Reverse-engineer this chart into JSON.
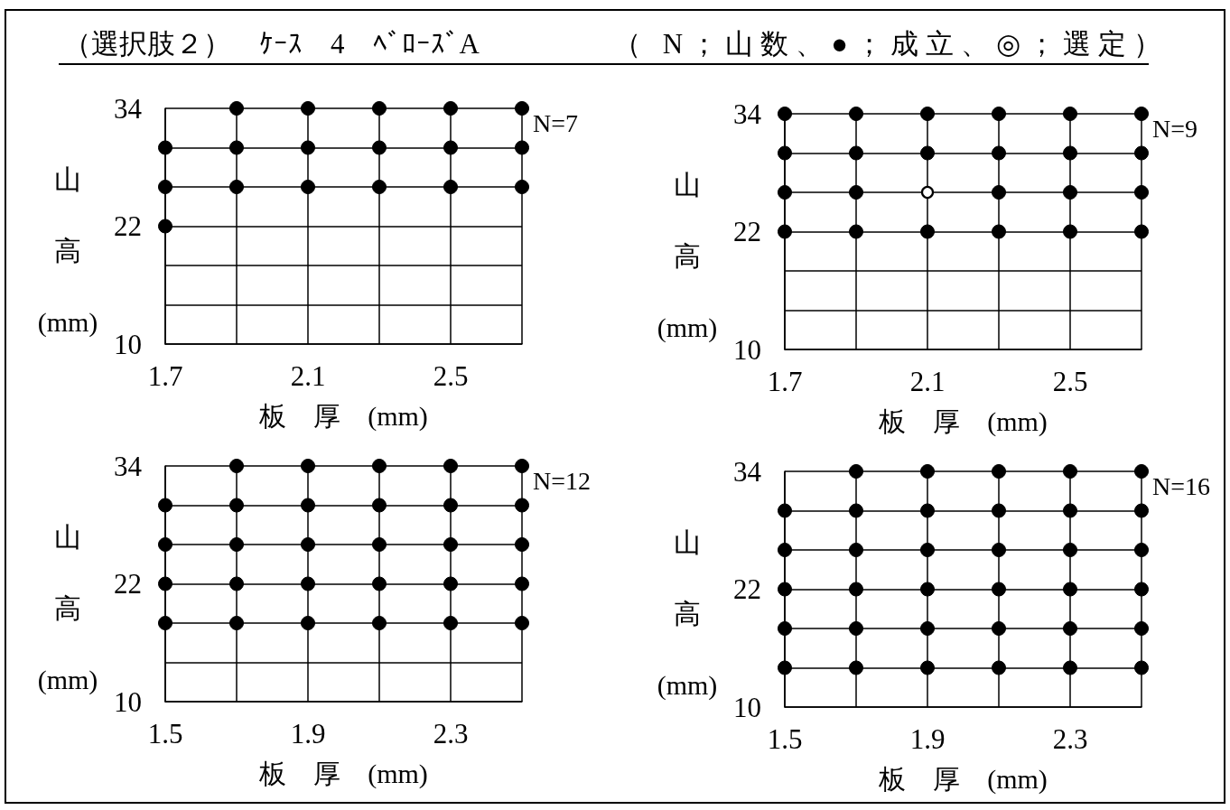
{
  "chart_data": [
    {
      "type": "other",
      "title": "（選択肢２）　ｹｰｽ　4　ﾍﾞﾛｰｽﾞA",
      "annotations": [
        "（ N；山数、●；成立、◎；選定）"
      ]
    },
    {
      "type": "scatter",
      "xlabel": "板　厚　(mm)",
      "ylabel": "山高(mm)",
      "annotations": [
        "N=7"
      ],
      "series": [
        {
          "color": "#000000",
          "x": [
            1.9,
            2.1,
            2.3,
            2.5,
            2.7,
            1.7,
            1.9,
            2.1,
            2.3,
            2.5,
            2.7,
            1.7,
            1.9,
            2.1,
            2.3,
            2.5,
            2.7,
            1.7
          ],
          "values": [
            34,
            34,
            34,
            34,
            34,
            30,
            30,
            30,
            30,
            30,
            30,
            26,
            26,
            26,
            26,
            26,
            26,
            22
          ]
        }
      ],
      "xlim": [
        1.7,
        2.7
      ],
      "xticks": [
        1.7,
        {
          "value": 1.9,
          "label": null
        },
        2.1,
        {
          "value": 2.3,
          "label": null
        },
        2.5,
        {
          "value": 2.7,
          "label": null
        }
      ],
      "ylim": [
        10,
        34
      ],
      "yticks": [
        10,
        {
          "value": 14,
          "label": null
        },
        {
          "value": 18,
          "label": null
        },
        22,
        {
          "value": 26,
          "label": null
        },
        {
          "value": 30,
          "label": null
        },
        34
      ],
      "grid": true,
      "marker": "circle"
    },
    {
      "type": "scatter",
      "xlabel": "板　厚　(mm)",
      "ylabel": "山高(mm)",
      "annotations": [
        "N=9"
      ],
      "series": [
        {
          "color": "#000000",
          "x": [
            1.7,
            1.9,
            2.1,
            2.3,
            2.5,
            2.7,
            1.7,
            1.9,
            2.1,
            2.3,
            2.5,
            2.7,
            1.7,
            1.9,
            2.3,
            2.5,
            2.7,
            1.7,
            1.9,
            2.1,
            2.3,
            2.5,
            2.7
          ],
          "values": [
            34,
            34,
            34,
            34,
            34,
            34,
            30,
            30,
            30,
            30,
            30,
            30,
            26,
            26,
            26,
            26,
            26,
            22,
            22,
            22,
            22,
            22,
            22
          ]
        },
        {
          "color": "#ffffff",
          "x": [
            2.1
          ],
          "values": [
            26
          ]
        }
      ],
      "xlim": [
        1.7,
        2.7
      ],
      "xticks": [
        1.7,
        {
          "value": 1.9,
          "label": null
        },
        2.1,
        {
          "value": 2.3,
          "label": null
        },
        2.5,
        {
          "value": 2.7,
          "label": null
        }
      ],
      "ylim": [
        10,
        34
      ],
      "yticks": [
        10,
        {
          "value": 14,
          "label": null
        },
        {
          "value": 18,
          "label": null
        },
        22,
        {
          "value": 26,
          "label": null
        },
        {
          "value": 30,
          "label": null
        },
        34
      ],
      "grid": true,
      "marker": "circle"
    },
    {
      "type": "scatter",
      "xlabel": "板　厚　(mm)",
      "ylabel": "山高(mm)",
      "annotations": [
        "N=12"
      ],
      "series": [
        {
          "color": "#000000",
          "x": [
            1.7,
            1.9,
            2.1,
            2.3,
            2.5,
            1.5,
            1.7,
            1.9,
            2.1,
            2.3,
            2.5,
            1.5,
            1.7,
            1.9,
            2.1,
            2.3,
            2.5,
            1.5,
            1.7,
            1.9,
            2.1,
            2.3,
            2.5,
            1.5,
            1.7,
            1.9,
            2.1,
            2.3,
            2.5
          ],
          "values": [
            34,
            34,
            34,
            34,
            34,
            30,
            30,
            30,
            30,
            30,
            30,
            26,
            26,
            26,
            26,
            26,
            26,
            22,
            22,
            22,
            22,
            22,
            22,
            18,
            18,
            18,
            18,
            18,
            18
          ]
        }
      ],
      "xlim": [
        1.5,
        2.5
      ],
      "xticks": [
        1.5,
        {
          "value": 1.7,
          "label": null
        },
        1.9,
        {
          "value": 2.1,
          "label": null
        },
        2.3,
        {
          "value": 2.5,
          "label": null
        }
      ],
      "ylim": [
        10,
        34
      ],
      "yticks": [
        10,
        {
          "value": 14,
          "label": null
        },
        {
          "value": 18,
          "label": null
        },
        22,
        {
          "value": 26,
          "label": null
        },
        {
          "value": 30,
          "label": null
        },
        34
      ],
      "grid": true,
      "marker": "circle"
    },
    {
      "type": "scatter",
      "xlabel": "板　厚　(mm)",
      "ylabel": "山高(mm)",
      "annotations": [
        "N=16"
      ],
      "series": [
        {
          "color": "#000000",
          "x": [
            1.7,
            1.9,
            2.1,
            2.3,
            2.5,
            1.5,
            1.7,
            1.9,
            2.1,
            2.3,
            2.5,
            1.5,
            1.7,
            1.9,
            2.1,
            2.3,
            2.5,
            1.5,
            1.7,
            1.9,
            2.1,
            2.3,
            2.5,
            1.5,
            1.7,
            1.9,
            2.1,
            2.3,
            2.5,
            1.5,
            1.7,
            1.9,
            2.1,
            2.3,
            2.5
          ],
          "values": [
            34,
            34,
            34,
            34,
            34,
            30,
            30,
            30,
            30,
            30,
            30,
            26,
            26,
            26,
            26,
            26,
            26,
            22,
            22,
            22,
            22,
            22,
            22,
            18,
            18,
            18,
            18,
            18,
            18,
            14,
            14,
            14,
            14,
            14,
            14
          ]
        }
      ],
      "xlim": [
        1.5,
        2.5
      ],
      "xticks": [
        1.5,
        {
          "value": 1.7,
          "label": null
        },
        1.9,
        {
          "value": 2.1,
          "label": null
        },
        2.3,
        {
          "value": 2.5,
          "label": null
        }
      ],
      "ylim": [
        10,
        34
      ],
      "yticks": [
        10,
        {
          "value": 14,
          "label": null
        },
        {
          "value": 18,
          "label": null
        },
        22,
        {
          "value": 26,
          "label": null
        },
        {
          "value": 30,
          "label": null
        },
        34
      ],
      "grid": true,
      "marker": "circle"
    }
  ]
}
